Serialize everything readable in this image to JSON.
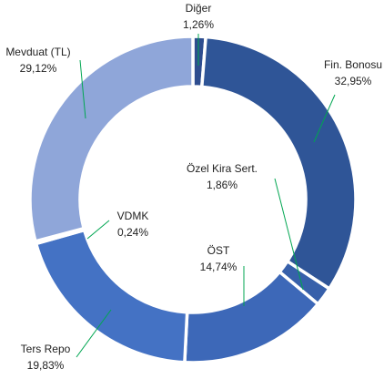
{
  "chart_data": {
    "type": "donut",
    "categories": [
      "Diğer",
      "Fin. Bonosu",
      "Özel Kira Sert.",
      "ÖST",
      "Ters Repo",
      "VDMK",
      "Mevduat (TL)"
    ],
    "values": [
      1.26,
      32.95,
      1.86,
      14.74,
      19.83,
      0.24,
      29.12
    ],
    "value_labels": [
      "1,26%",
      "32,95%",
      "1,86%",
      "14,74%",
      "19,83%",
      "0,24%",
      "29,12%"
    ],
    "colors": [
      "#2e4d8f",
      "#2f5597",
      "#3760aa",
      "#3d68b8",
      "#4472c4",
      "#7f9bd5",
      "#8fa6d9"
    ],
    "leader_color": "#00a651"
  }
}
